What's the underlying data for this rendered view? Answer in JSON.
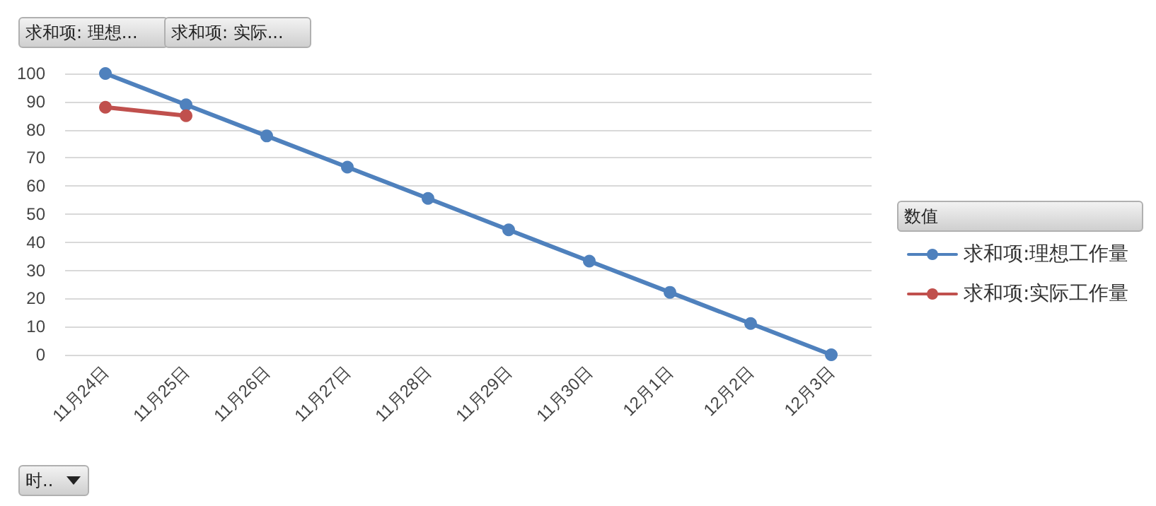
{
  "chart_data": {
    "type": "line",
    "categories": [
      "11月24日",
      "11月25日",
      "11月26日",
      "11月27日",
      "11月28日",
      "11月29日",
      "11月30日",
      "12月1日",
      "12月2日",
      "12月3日"
    ],
    "series": [
      {
        "name": "求和项:理想工作量",
        "color": "#4f81bd",
        "values": [
          100,
          88.9,
          77.8,
          66.7,
          55.6,
          44.4,
          33.3,
          22.2,
          11.1,
          0
        ]
      },
      {
        "name": "求和项:实际工作量",
        "color": "#c0504d",
        "values": [
          88,
          85,
          null,
          null,
          null,
          null,
          null,
          null,
          null,
          null
        ]
      }
    ],
    "ylim": [
      0,
      100
    ],
    "yticks": [
      0,
      10,
      20,
      30,
      40,
      50,
      60,
      70,
      80,
      90,
      100
    ],
    "grid": "y",
    "legend": "right",
    "legend_title": "数值",
    "marker": "circle",
    "line_style": "solid",
    "annotations": [
      "求和项: 理想...",
      "求和项: 实际...",
      "时.."
    ]
  }
}
